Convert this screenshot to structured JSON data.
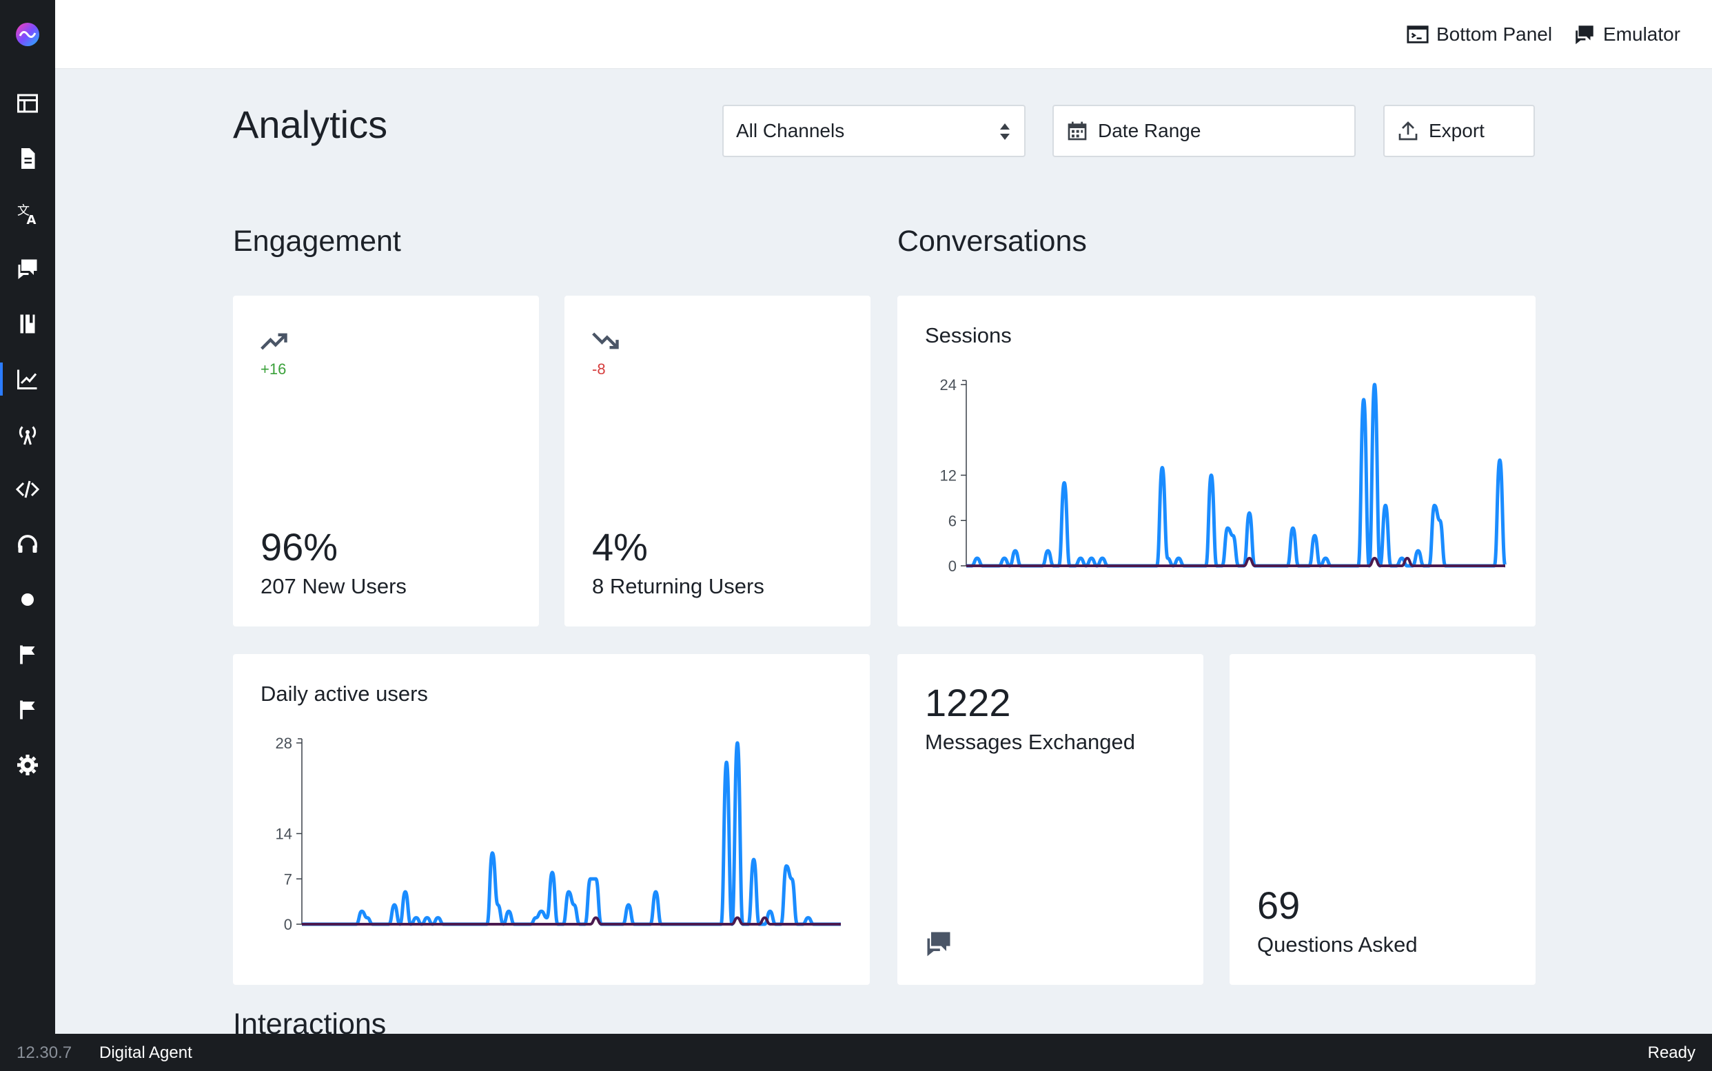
{
  "app": {
    "version": "12.30.7",
    "bot_name": "Digital Agent",
    "status": "Ready"
  },
  "topbar": {
    "bottom_panel_label": "Bottom Panel",
    "emulator_label": "Emulator"
  },
  "sidebar": {
    "items": [
      {
        "icon": "layout-icon"
      },
      {
        "icon": "document-icon"
      },
      {
        "icon": "translate-icon"
      },
      {
        "icon": "chat-icon"
      },
      {
        "icon": "book-icon"
      },
      {
        "icon": "chart-line-icon",
        "active": true
      },
      {
        "icon": "broadcast-icon"
      },
      {
        "icon": "code-icon"
      },
      {
        "icon": "headset-icon"
      },
      {
        "icon": "dot-icon"
      },
      {
        "icon": "flag-icon"
      },
      {
        "icon": "flag-icon"
      },
      {
        "icon": "gear-icon"
      }
    ]
  },
  "page": {
    "title": "Analytics",
    "channel_select": "All Channels",
    "date_range_label": "Date Range",
    "export_label": "Export"
  },
  "sections": {
    "engagement": "Engagement",
    "conversations": "Conversations",
    "interactions": "Interactions"
  },
  "engagement": {
    "new_users": {
      "delta": "+16",
      "percent": "96%",
      "label": "207 New Users",
      "delta_color": "#3aa13a"
    },
    "returning_users": {
      "delta": "-8",
      "percent": "4%",
      "label": "8 Returning Users",
      "delta_color": "#d63c3c"
    }
  },
  "conversations": {
    "messages": {
      "value": "1222",
      "label": "Messages Exchanged"
    },
    "questions": {
      "value": "69",
      "label": "Questions Asked"
    }
  },
  "charts": {
    "sessions_title": "Sessions",
    "dau_title": "Daily active users"
  },
  "chart_data": [
    {
      "type": "line",
      "title": "Sessions",
      "ylim": [
        0,
        24
      ],
      "yticks": [
        0,
        6,
        12,
        24
      ],
      "series_colors": [
        "#1a8cff",
        "#4b1a4f"
      ],
      "x": [
        0,
        1,
        2,
        3,
        4,
        5,
        6,
        7,
        8,
        9,
        10,
        11,
        12,
        13,
        14,
        15,
        16,
        17,
        18,
        19,
        20,
        21,
        22,
        23,
        24,
        25,
        26,
        27,
        28,
        29,
        30,
        31,
        32,
        33,
        34,
        35,
        36,
        37,
        38,
        39,
        40,
        41,
        42,
        43,
        44,
        45,
        46,
        47,
        48,
        49,
        50,
        51,
        52,
        53,
        54,
        55,
        56,
        57,
        58,
        59,
        60,
        61,
        62,
        63,
        64,
        65,
        66,
        67,
        68,
        69,
        70,
        71,
        72,
        73,
        74,
        75,
        76,
        77,
        78,
        79,
        80,
        81,
        82,
        83,
        84,
        85,
        86,
        87,
        88,
        89,
        90,
        91,
        92,
        93,
        94,
        95,
        96,
        97,
        98,
        99
      ],
      "series": [
        {
          "values": [
            0,
            0,
            1,
            0,
            0,
            0,
            0,
            1,
            0,
            2,
            0,
            0,
            0,
            0,
            0,
            2,
            0,
            0,
            11,
            0,
            0,
            1,
            0,
            1,
            0,
            1,
            0,
            0,
            0,
            0,
            0,
            0,
            0,
            0,
            0,
            0,
            13,
            1,
            0,
            1,
            0,
            0,
            0,
            0,
            0,
            12,
            0,
            0,
            5,
            4,
            0,
            0,
            7,
            0,
            0,
            0,
            0,
            0,
            0,
            0,
            5,
            0,
            0,
            0,
            4,
            0,
            1,
            0,
            0,
            0,
            0,
            0,
            0,
            22,
            0,
            24,
            0,
            8,
            0,
            0,
            1,
            0,
            0,
            2,
            0,
            0,
            8,
            6,
            0,
            0,
            0,
            0,
            0,
            0,
            0,
            0,
            0,
            0,
            14,
            0
          ]
        },
        {
          "values": [
            0,
            0,
            0,
            0,
            0,
            0,
            0,
            0,
            0,
            0,
            0,
            0,
            0,
            0,
            0,
            0,
            0,
            0,
            0,
            0,
            0,
            0,
            0,
            0,
            0,
            0,
            0,
            0,
            0,
            0,
            0,
            0,
            0,
            0,
            0,
            0,
            0,
            0,
            0,
            0,
            0,
            0,
            0,
            0,
            0,
            0,
            0,
            0,
            0,
            0,
            0,
            0,
            1,
            0,
            0,
            0,
            0,
            0,
            0,
            0,
            0,
            0,
            0,
            0,
            0,
            0,
            0,
            0,
            0,
            0,
            0,
            0,
            0,
            0,
            0,
            1,
            0,
            0,
            0,
            0,
            0,
            1,
            0,
            0,
            0,
            0,
            0,
            0,
            0,
            0,
            0,
            0,
            0,
            0,
            0,
            0,
            0,
            0,
            0,
            0
          ]
        }
      ]
    },
    {
      "type": "line",
      "title": "Daily active users",
      "ylim": [
        0,
        28
      ],
      "yticks": [
        0,
        7,
        14,
        28
      ],
      "series_colors": [
        "#1a8cff",
        "#4b1a4f"
      ],
      "x": [
        0,
        1,
        2,
        3,
        4,
        5,
        6,
        7,
        8,
        9,
        10,
        11,
        12,
        13,
        14,
        15,
        16,
        17,
        18,
        19,
        20,
        21,
        22,
        23,
        24,
        25,
        26,
        27,
        28,
        29,
        30,
        31,
        32,
        33,
        34,
        35,
        36,
        37,
        38,
        39,
        40,
        41,
        42,
        43,
        44,
        45,
        46,
        47,
        48,
        49,
        50,
        51,
        52,
        53,
        54,
        55,
        56,
        57,
        58,
        59,
        60,
        61,
        62,
        63,
        64,
        65,
        66,
        67,
        68,
        69,
        70,
        71,
        72,
        73,
        74,
        75,
        76,
        77,
        78,
        79,
        80,
        81,
        82,
        83,
        84,
        85,
        86,
        87,
        88,
        89,
        90,
        91,
        92,
        93,
        94,
        95,
        96,
        97,
        98,
        99
      ],
      "series": [
        {
          "values": [
            0,
            0,
            0,
            0,
            0,
            0,
            0,
            0,
            0,
            0,
            0,
            2,
            1,
            0,
            0,
            0,
            0,
            3,
            0,
            5,
            0,
            1,
            0,
            1,
            0,
            1,
            0,
            0,
            0,
            0,
            0,
            0,
            0,
            0,
            0,
            11,
            3,
            0,
            2,
            0,
            0,
            0,
            0,
            1,
            2,
            1,
            8,
            0,
            0,
            5,
            3,
            0,
            0,
            7,
            7,
            0,
            0,
            0,
            0,
            0,
            3,
            0,
            0,
            0,
            0,
            5,
            0,
            0,
            0,
            0,
            0,
            0,
            0,
            0,
            0,
            0,
            0,
            0,
            25,
            0,
            28,
            0,
            0,
            10,
            0,
            0,
            2,
            0,
            0,
            9,
            7,
            0,
            0,
            1,
            0,
            0,
            0,
            0,
            0,
            0
          ]
        },
        {
          "values": [
            0,
            0,
            0,
            0,
            0,
            0,
            0,
            0,
            0,
            0,
            0,
            0,
            0,
            0,
            0,
            0,
            0,
            0,
            0,
            0,
            0,
            0,
            0,
            0,
            0,
            0,
            0,
            0,
            0,
            0,
            0,
            0,
            0,
            0,
            0,
            0,
            0,
            0,
            0,
            0,
            0,
            0,
            0,
            0,
            0,
            0,
            0,
            0,
            0,
            0,
            0,
            0,
            0,
            0,
            1,
            0,
            0,
            0,
            0,
            0,
            0,
            0,
            0,
            0,
            0,
            0,
            0,
            0,
            0,
            0,
            0,
            0,
            0,
            0,
            0,
            0,
            0,
            0,
            0,
            0,
            1,
            0,
            0,
            0,
            0,
            1,
            0,
            0,
            0,
            0,
            0,
            0,
            0,
            0,
            0,
            0,
            0,
            0,
            0,
            0
          ]
        }
      ]
    }
  ]
}
